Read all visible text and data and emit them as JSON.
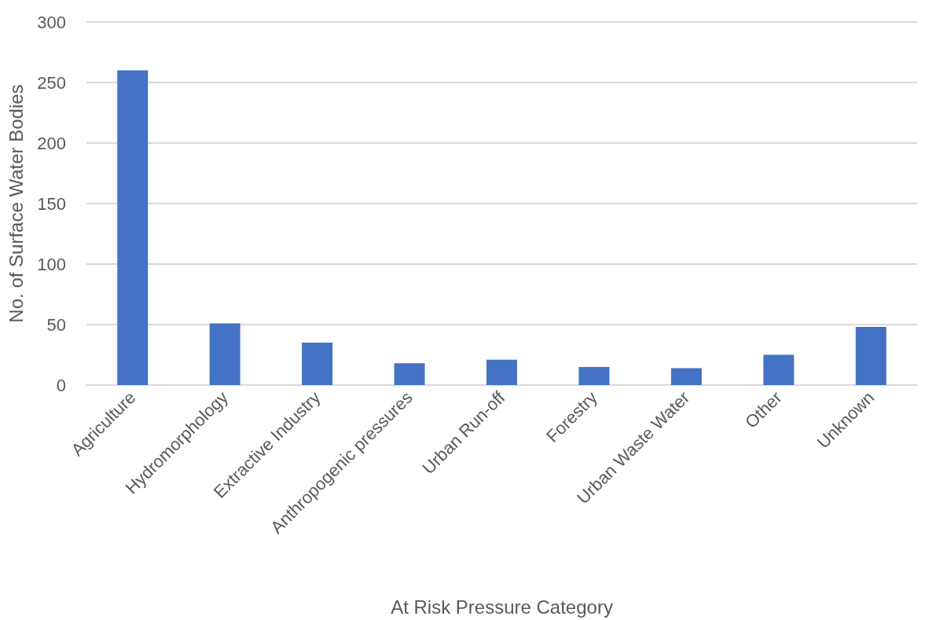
{
  "chart_data": {
    "type": "bar",
    "xlabel": "At Risk Pressure Category",
    "ylabel": "No. of Surface Water Bodies",
    "categories": [
      "Agriculture",
      "Hydromorphology",
      "Extractive Industry",
      "Anthropogenic pressures",
      "Urban Run-off",
      "Forestry",
      "Urban Waste Water",
      "Other",
      "Unknown"
    ],
    "values": [
      260,
      51,
      35,
      18,
      21,
      15,
      14,
      25,
      48
    ],
    "color": "#4472c4",
    "ylim": [
      0,
      300
    ],
    "yticks": [
      0,
      50,
      100,
      150,
      200,
      250,
      300
    ],
    "grid": "y"
  }
}
